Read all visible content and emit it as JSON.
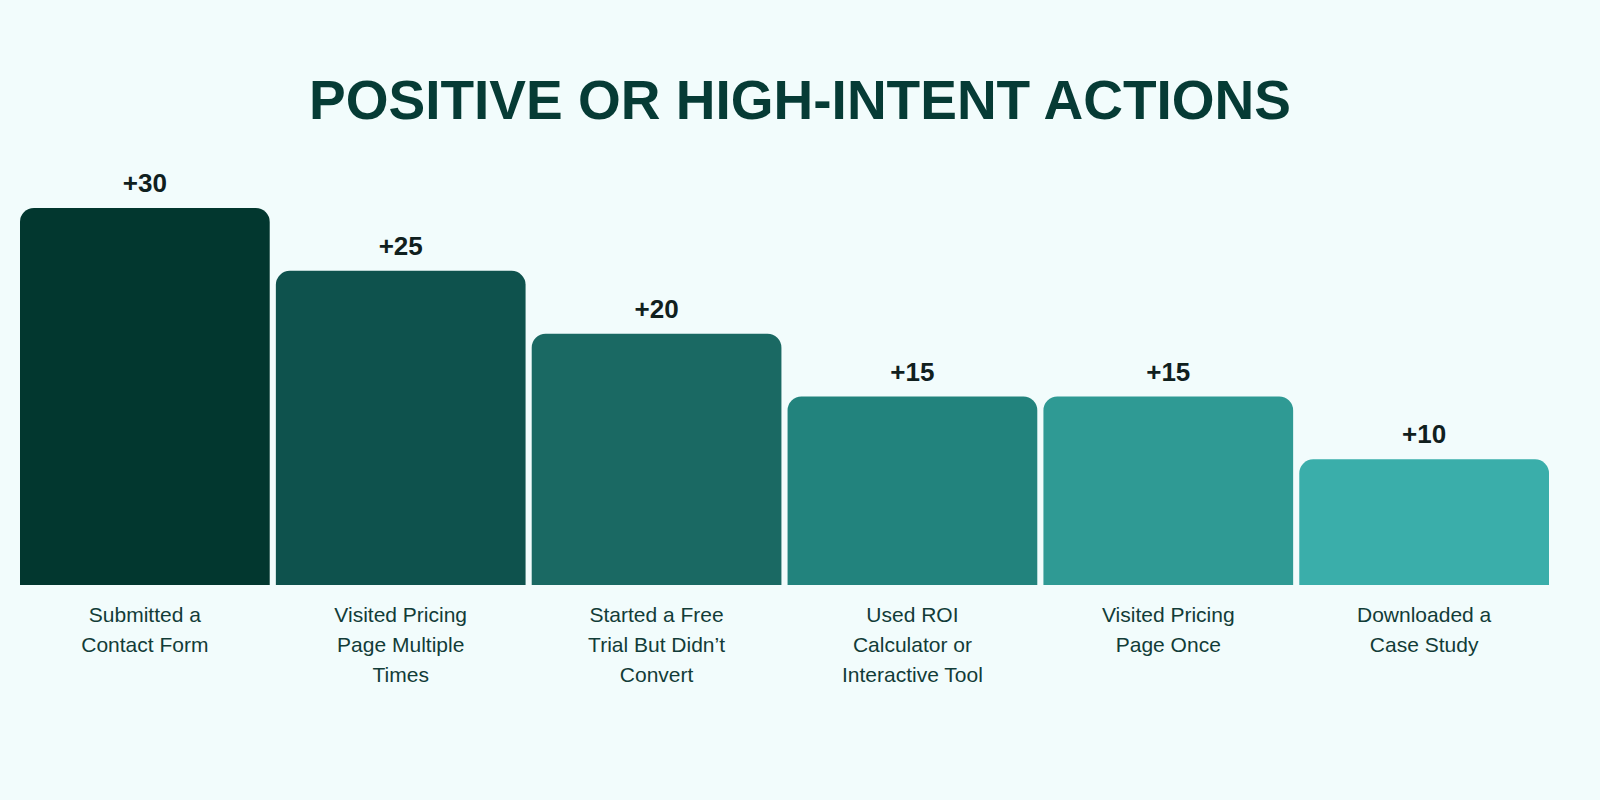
{
  "chart_data": {
    "type": "bar",
    "title": "POSITIVE OR HIGH-INTENT ACTIONS",
    "categories": [
      "Submitted a Contact Form",
      "Visited Pricing Page Multiple Times",
      "Started a Free Trial But Didn’t Convert",
      "Used ROI Calculator or Interactive Tool",
      "Visited Pricing Page Once",
      "Downloaded a Case Study"
    ],
    "values": [
      30,
      25,
      20,
      15,
      15,
      10
    ],
    "value_labels": [
      "+30",
      "+25",
      "+20",
      "+15",
      "+15",
      "+10"
    ],
    "colors": [
      "#02372f",
      "#0e524d",
      "#1a6963",
      "#22837d",
      "#2f9a94",
      "#3aaeaa"
    ],
    "ylim": [
      0,
      30
    ],
    "grid": false,
    "data_labels": true,
    "tick_labels": "x"
  }
}
